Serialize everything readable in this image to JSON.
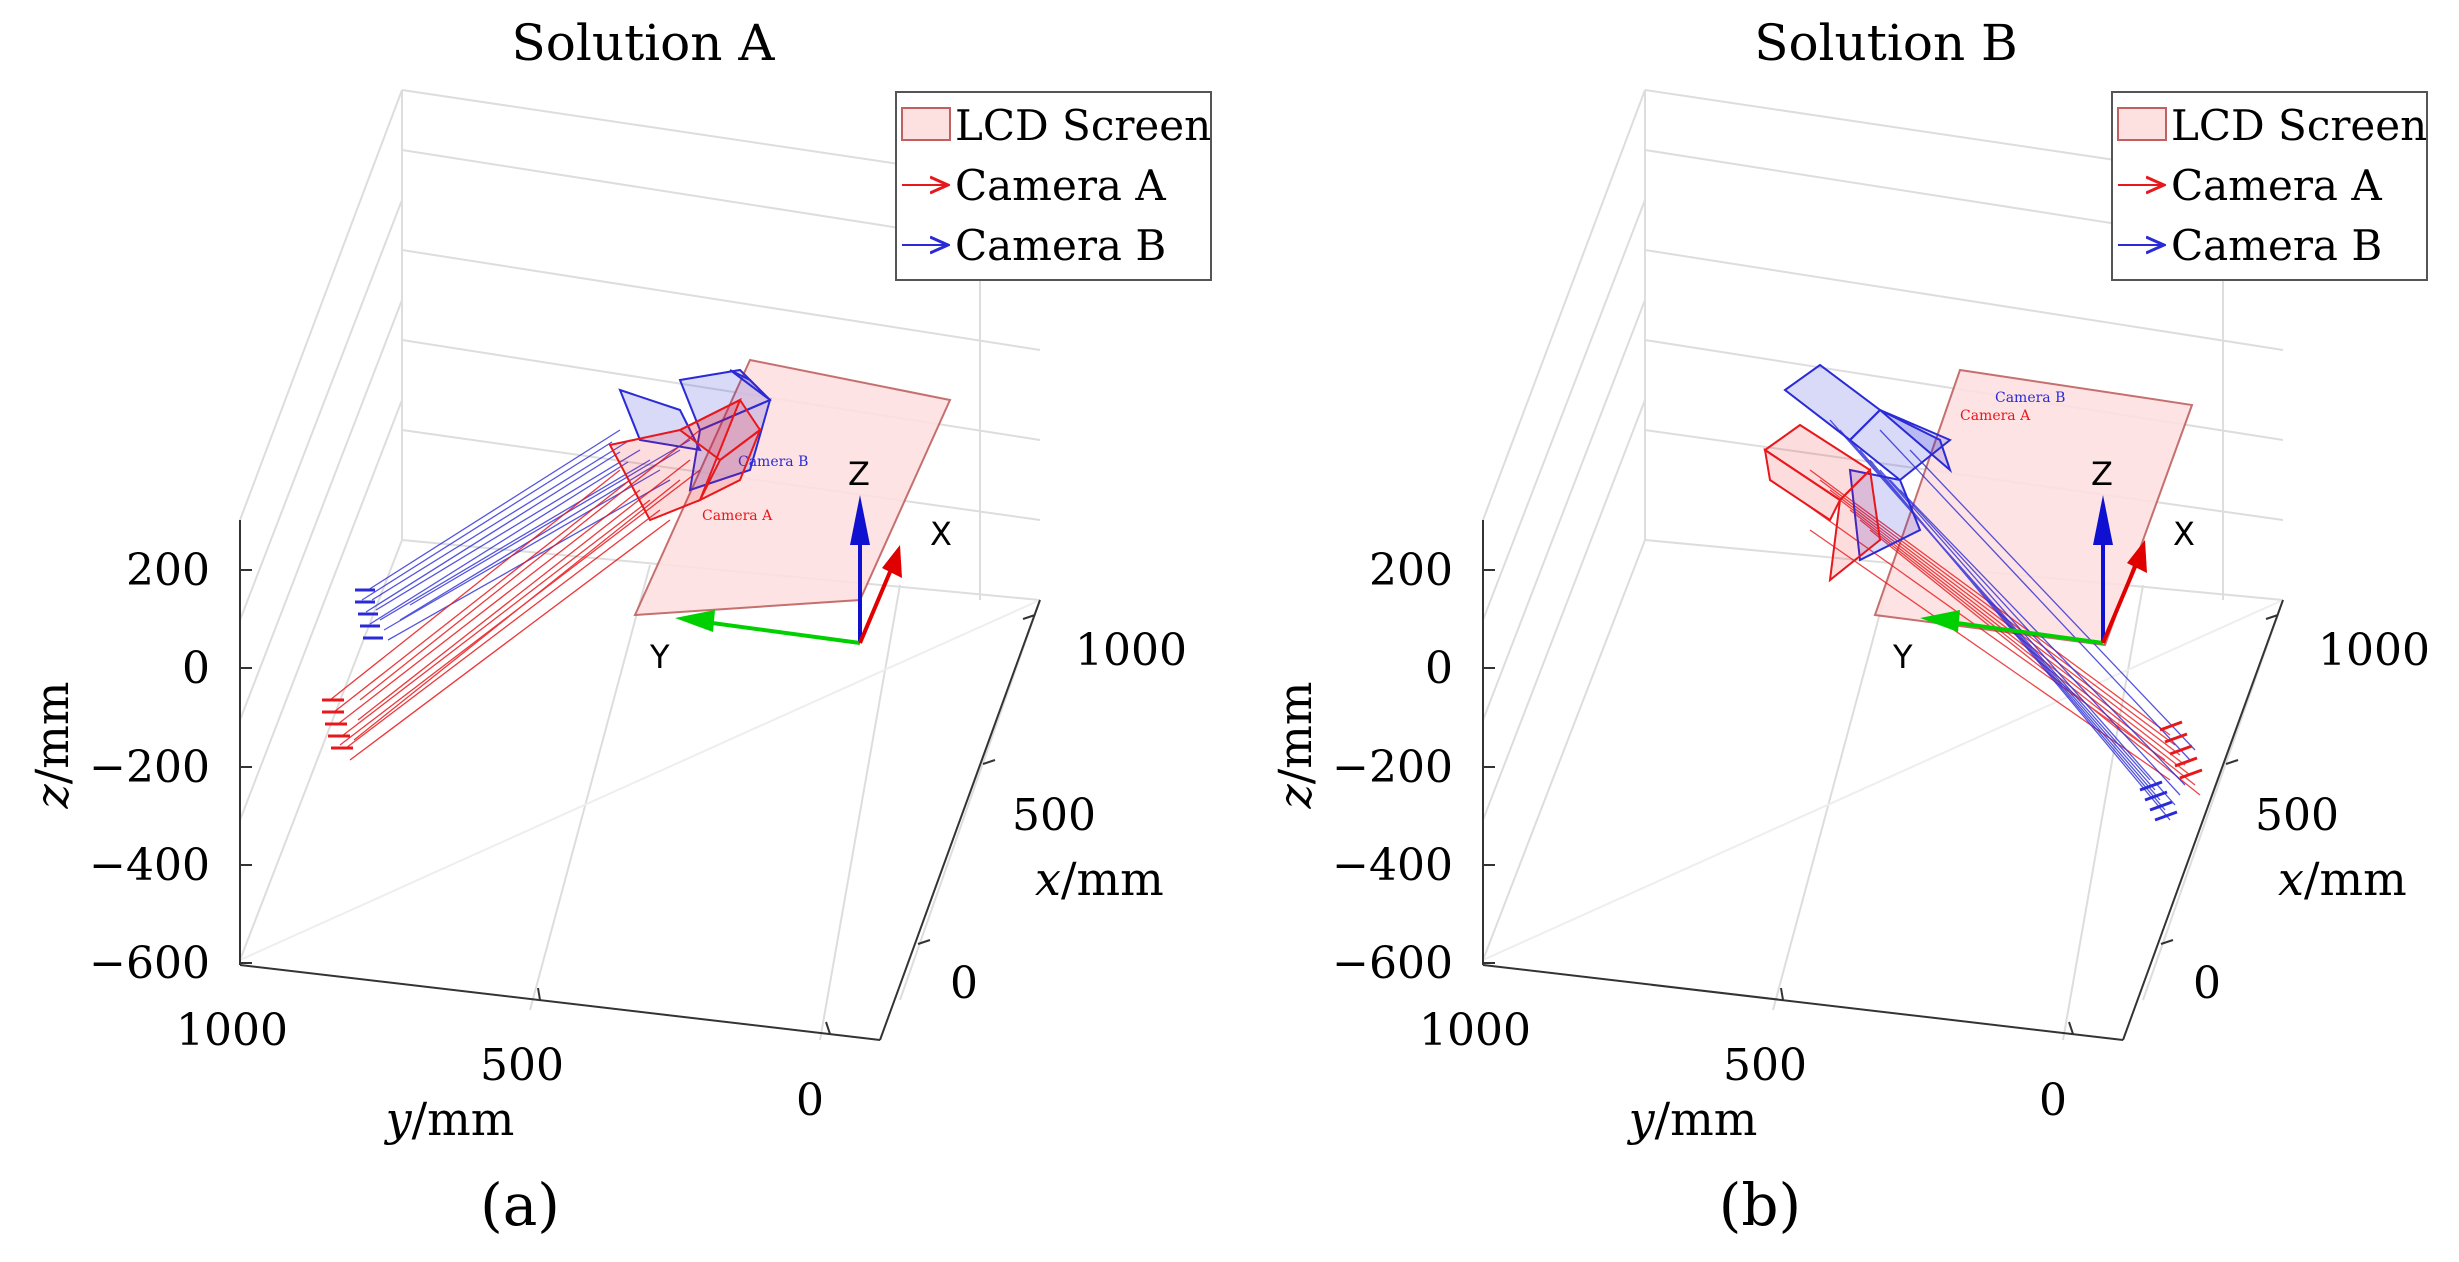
{
  "colors": {
    "camera_a": "#e8171b",
    "camera_b": "#2a2ad6",
    "screen_fill": "#fde0e0",
    "screen_edge": "#c06060",
    "axis_x": "#e00000",
    "axis_y": "#00d000",
    "axis_z": "#1010d0",
    "grid": "#dddddd",
    "box": "#333333"
  },
  "chart_data": [
    {
      "type": "3d-line",
      "title": "Solution A",
      "caption": "(a)",
      "xlabel_var": "x",
      "xlabel_unit": "/mm",
      "ylabel_var": "y",
      "ylabel_unit": "/mm",
      "zlabel_var": "z",
      "zlabel_unit": "/mm",
      "x_ticks": [
        "0",
        "500",
        "1000"
      ],
      "y_ticks": [
        "1000",
        "500",
        "0"
      ],
      "z_ticks": [
        "200",
        "0",
        "−200",
        "−400",
        "−600"
      ],
      "legend": [
        "LCD Screen",
        "Camera A",
        "Camera B"
      ],
      "screen_labels": [
        "Camera B",
        "Camera A"
      ],
      "frame_axes": [
        "X",
        "Y",
        "Z"
      ]
    },
    {
      "type": "3d-line",
      "title": "Solution B",
      "caption": "(b)",
      "xlabel_var": "x",
      "xlabel_unit": "/mm",
      "ylabel_var": "y",
      "ylabel_unit": "/mm",
      "zlabel_var": "z",
      "zlabel_unit": "/mm",
      "x_ticks": [
        "0",
        "500",
        "1000"
      ],
      "y_ticks": [
        "1000",
        "500",
        "0"
      ],
      "z_ticks": [
        "200",
        "0",
        "−200",
        "−400",
        "−600"
      ],
      "legend": [
        "LCD Screen",
        "Camera A",
        "Camera B"
      ],
      "screen_labels": [
        "Camera B",
        "Camera A"
      ],
      "frame_axes": [
        "X",
        "Y",
        "Z"
      ]
    }
  ]
}
